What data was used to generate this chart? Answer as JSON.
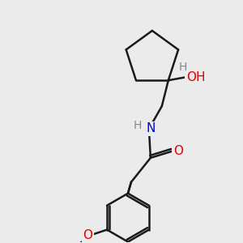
{
  "background_color": "#ebebeb",
  "bond_color": "#1a1a1a",
  "bond_width": 1.8,
  "atom_colors": {
    "O": "#e00000",
    "N": "#0000e0",
    "H": "#888888"
  },
  "font_size_atom": 11,
  "font_size_h": 10,
  "fig_size": [
    3.0,
    3.0
  ],
  "dpi": 100,
  "xlim": [
    0,
    300
  ],
  "ylim": [
    0,
    300
  ]
}
